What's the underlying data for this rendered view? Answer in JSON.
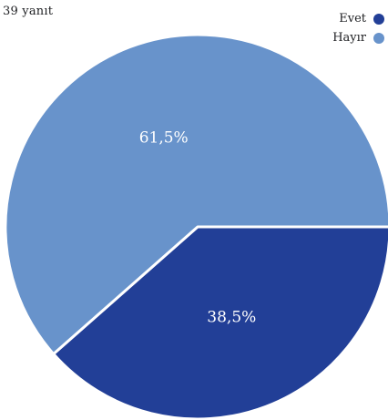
{
  "header": {
    "response_count": "39 yanıt"
  },
  "chart_data": {
    "type": "pie",
    "slices": [
      {
        "label": "Evet",
        "value": 38.5,
        "display": "38,5%",
        "color": "#223f97"
      },
      {
        "label": "Hayır",
        "value": 61.5,
        "display": "61,5%",
        "color": "#6893cb"
      }
    ],
    "legend_position": "top-right"
  }
}
